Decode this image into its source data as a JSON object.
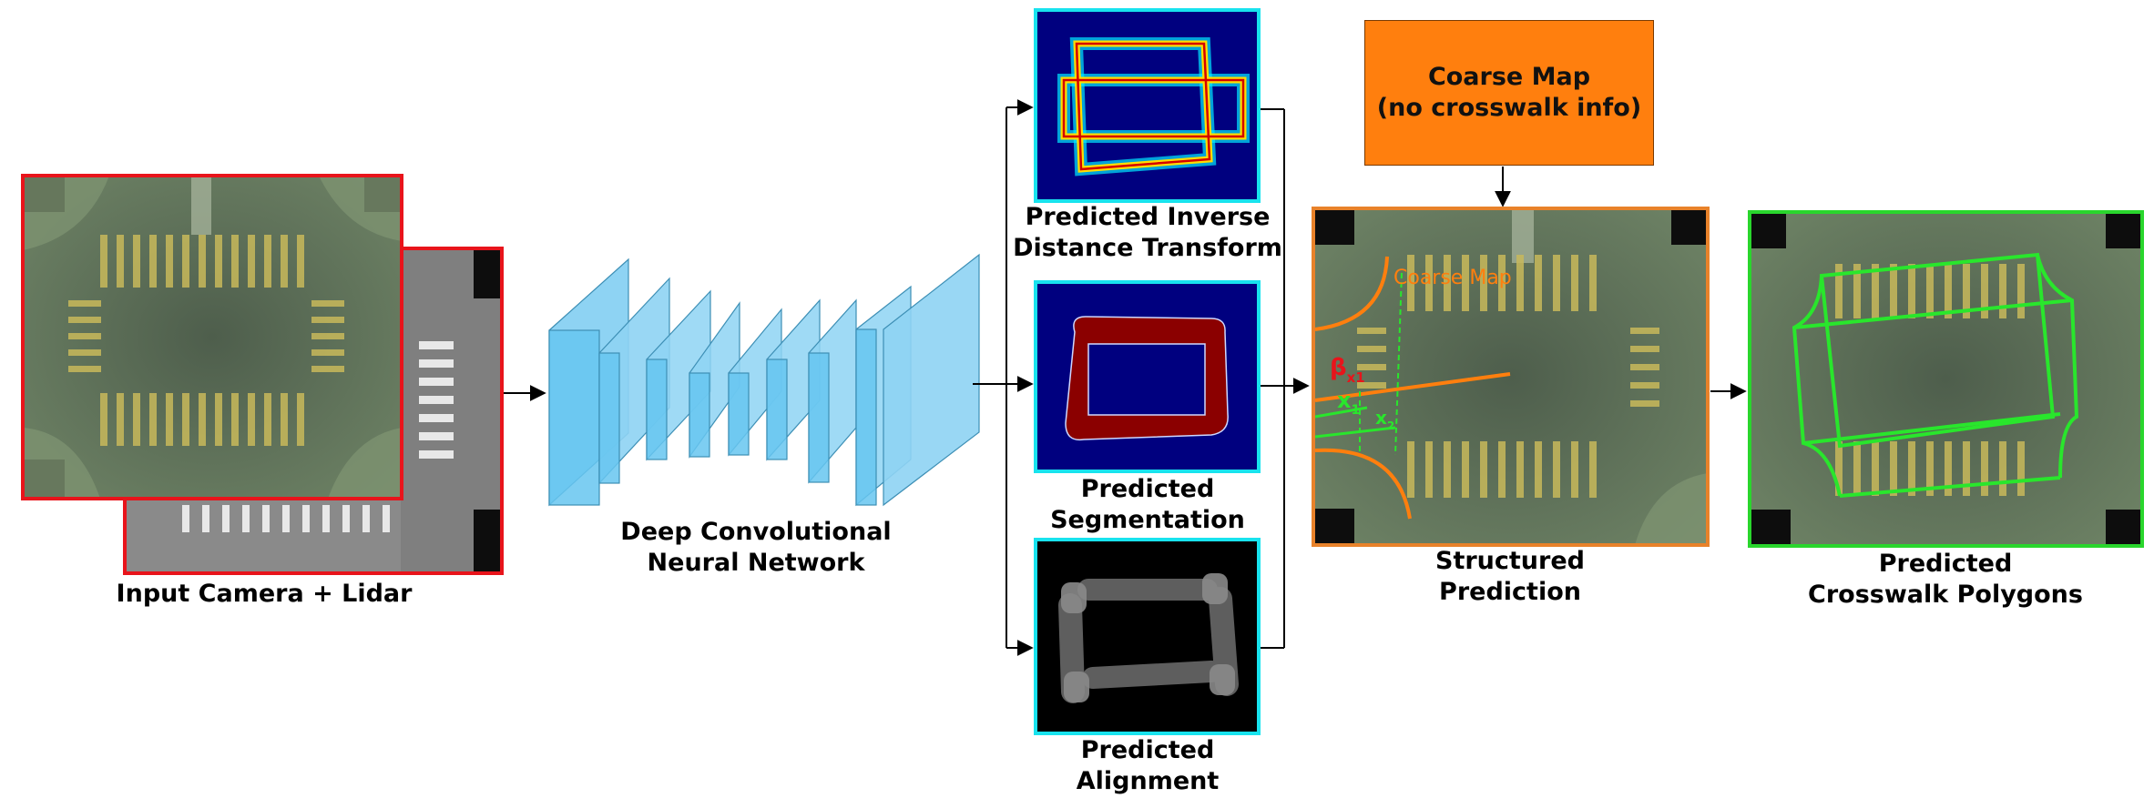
{
  "input": {
    "label": "Input Camera + Lidar",
    "frame_color": "#e8141b"
  },
  "network": {
    "label_line1": "Deep Convolutional",
    "label_line2": "Neural Network",
    "layer_color": "#5bc4ee"
  },
  "outputs": {
    "frame_color": "#18e3ee",
    "inverse_distance": {
      "line1": "Predicted Inverse",
      "line2": "Distance Transform"
    },
    "segmentation": {
      "line1": "Predicted",
      "line2": "Segmentation"
    },
    "alignment": {
      "line1": "Predicted",
      "line2": "Alignment"
    }
  },
  "coarse_map": {
    "line1": "Coarse Map",
    "line2": "(no crosswalk info)",
    "fill_color": "#ff7f0e"
  },
  "structured": {
    "line1": "Structured",
    "line2": "Prediction",
    "frame_color": "#e8822a",
    "overlay_label": "Coarse Map",
    "beta_label": "β",
    "beta_sub": "x1",
    "x1_label": "x",
    "x1_sub": "1",
    "x2_label": "x",
    "x2_sub": "2"
  },
  "final": {
    "line1": "Predicted",
    "line2": "Crosswalk Polygons",
    "frame_color": "#29d62c"
  }
}
